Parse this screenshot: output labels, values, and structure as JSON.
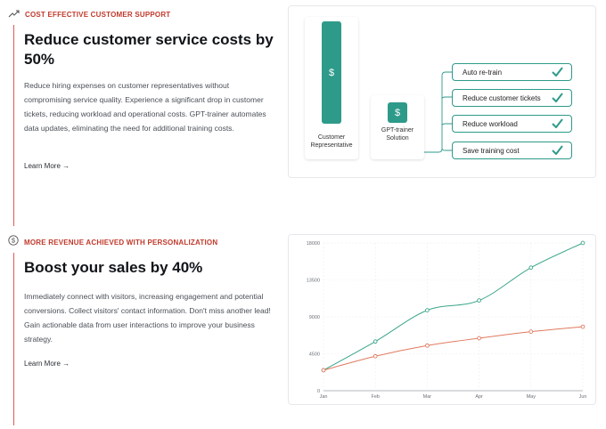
{
  "section1": {
    "eyebrow": "COST EFFECTIVE CUSTOMER SUPPORT",
    "eyebrow_icon": "trending-up-icon",
    "title": "Reduce customer service costs by 50%",
    "description": "Reduce hiring expenses on customer representatives without compromising service quality. Experience a significant drop in customer tickets, reducing workload and operational costs. GPT-trainer automates data updates, eliminating the need for additional training costs.",
    "learn_more": "Learn More →",
    "diagram": {
      "rep_label": "Customer Representative",
      "gpt_label": "GPT-trainer Solution",
      "dollar": "$",
      "benefits": [
        "Auto re-train",
        "Reduce customer tickets",
        "Reduce workload",
        "Save training cost"
      ],
      "accent": "#2e9a8a"
    }
  },
  "section2": {
    "eyebrow": "MORE REVENUE ACHIEVED WITH PERSONALIZATION",
    "eyebrow_icon": "dollar-circle-icon",
    "title": "Boost your sales by 40%",
    "description": "Immediately connect with visitors, increasing engagement and potential conversions. Collect visitors' contact information. Don't miss another lead! Gain actionable data from user interactions to improve your business strategy.",
    "learn_more": "Learn More →"
  },
  "colors": {
    "accent_red": "#c0392b",
    "teal": "#2e9a8a",
    "orange": "#e07a5f"
  },
  "chart_data": {
    "type": "line",
    "x": [
      "Jan",
      "Feb",
      "Mar",
      "Apr",
      "May",
      "Jun"
    ],
    "ylim": [
      0,
      18000
    ],
    "yticks": [
      "0",
      "4500",
      "9000",
      "13500",
      "18000"
    ],
    "grid": true,
    "series": [
      {
        "values": [
          2500,
          6000,
          9800,
          11000,
          15000,
          18000
        ],
        "color": "#3aa58a"
      },
      {
        "values": [
          2500,
          4200,
          5500,
          6400,
          7200,
          7800
        ],
        "color": "#e07a5f"
      }
    ]
  }
}
